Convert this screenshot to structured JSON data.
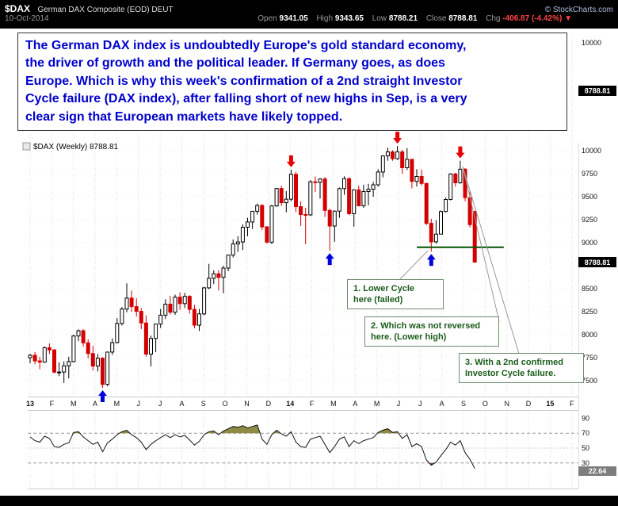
{
  "header": {
    "symbol": "$DAX",
    "title": "German DAX Composite (EOD) DEUT",
    "date": "10-Oct-2014",
    "copyright": "© StockCharts.com",
    "quote": {
      "open_l": "Open",
      "open_v": "9341.05",
      "high_l": "High",
      "high_v": "9343.65",
      "low_l": "Low",
      "low_v": "8788.21",
      "close_l": "Close",
      "close_v": "8788.81",
      "chg_l": "Chg",
      "chg_v": "-406.87 (-4.42%)",
      "arrow": "▼"
    }
  },
  "commentary": {
    "lines": [
      "The German DAX index is undoubtedly Europe's gold standard economy,",
      "the driver of growth and the political leader.  If Germany goes, as does",
      "Europe.  Which is why this week's confirmation of a 2nd straight Investor",
      "Cycle failure (DAX index), after falling short of new highs in Sep, is a very",
      "clear sign that European markets have likely topped."
    ]
  },
  "notes": {
    "note1": [
      "1. Lower Cycle",
      "here (failed)"
    ],
    "note2": [
      "2. Which was not reversed",
      "here. (Lower high)"
    ],
    "note3": [
      "3. With a 2nd confirmed",
      "Investor Cycle failure."
    ]
  },
  "chart_data": {
    "type": "candlestick",
    "title": "$DAX (Weekly) 8788.81",
    "timeframe": "Weekly",
    "last_price": 8788.81,
    "price_tag": "8788.81",
    "upper_axis": {
      "label": "10000",
      "tag": "8788.81"
    },
    "x_labels": [
      "13",
      "F",
      "M",
      "A",
      "M",
      "J",
      "J",
      "A",
      "S",
      "O",
      "N",
      "D",
      "14",
      "F",
      "M",
      "A",
      "M",
      "J",
      "J",
      "A",
      "S",
      "O",
      "N",
      "D",
      "15",
      "F"
    ],
    "price_axis": [
      10000,
      9750,
      9500,
      9250,
      9000,
      8500,
      8250,
      8000,
      7750,
      7500
    ],
    "ylim": [
      7350,
      10150
    ],
    "candles": [
      [
        7750,
        7792,
        7690,
        7776
      ],
      [
        7776,
        7810,
        7680,
        7715
      ],
      [
        7715,
        7760,
        7625,
        7702
      ],
      [
        7702,
        7871,
        7695,
        7858
      ],
      [
        7858,
        7905,
        7790,
        7834
      ],
      [
        7834,
        7845,
        7580,
        7593
      ],
      [
        7593,
        7700,
        7550,
        7594
      ],
      [
        7594,
        7710,
        7475,
        7662
      ],
      [
        7662,
        7760,
        7525,
        7708
      ],
      [
        7708,
        8000,
        7700,
        7986
      ],
      [
        7986,
        8058,
        7930,
        8043
      ],
      [
        8043,
        8060,
        7870,
        7911
      ],
      [
        7911,
        7950,
        7740,
        7795
      ],
      [
        7795,
        7880,
        7610,
        7659
      ],
      [
        7659,
        7790,
        7600,
        7745
      ],
      [
        7745,
        7755,
        7422,
        7460
      ],
      [
        7460,
        7815,
        7440,
        7811
      ],
      [
        7811,
        7960,
        7780,
        7914
      ],
      [
        7914,
        8180,
        7905,
        8122
      ],
      [
        8122,
        8300,
        8100,
        8279
      ],
      [
        8279,
        8558,
        8245,
        8398
      ],
      [
        8398,
        8480,
        8250,
        8305
      ],
      [
        8305,
        8395,
        8196,
        8254
      ],
      [
        8254,
        8290,
        8060,
        8127
      ],
      [
        8127,
        8210,
        7760,
        7789
      ],
      [
        7789,
        7990,
        7655,
        7959
      ],
      [
        7959,
        8120,
        7810,
        8116
      ],
      [
        8116,
        8280,
        8073,
        8212
      ],
      [
        8212,
        8385,
        8170,
        8332
      ],
      [
        8332,
        8420,
        8220,
        8245
      ],
      [
        8245,
        8435,
        8215,
        8408
      ],
      [
        8408,
        8460,
        8270,
        8338
      ],
      [
        8338,
        8455,
        8290,
        8417
      ],
      [
        8417,
        8430,
        8230,
        8275
      ],
      [
        8275,
        8325,
        8070,
        8103
      ],
      [
        8103,
        8280,
        8040,
        8226
      ],
      [
        8226,
        8520,
        8210,
        8509
      ],
      [
        8509,
        8770,
        8495,
        8613
      ],
      [
        8613,
        8700,
        8550,
        8662
      ],
      [
        8662,
        8700,
        8480,
        8623
      ],
      [
        8623,
        8750,
        8450,
        8724
      ],
      [
        8724,
        8870,
        8690,
        8865
      ],
      [
        8865,
        9035,
        8840,
        8986
      ],
      [
        8986,
        9070,
        8900,
        9008
      ],
      [
        9008,
        9200,
        8920,
        9168
      ],
      [
        9168,
        9270,
        9070,
        9225
      ],
      [
        9225,
        9345,
        9150,
        9341
      ],
      [
        9341,
        9425,
        9305,
        9405
      ],
      [
        9405,
        9420,
        9139,
        9172
      ],
      [
        9172,
        9180,
        8990,
        9006
      ],
      [
        9006,
        9410,
        8984,
        9400
      ],
      [
        9400,
        9595,
        9390,
        9589
      ],
      [
        9589,
        9620,
        9400,
        9435
      ],
      [
        9435,
        9560,
        9330,
        9473
      ],
      [
        9473,
        9794,
        9450,
        9743
      ],
      [
        9743,
        9770,
        9335,
        9392
      ],
      [
        9392,
        9450,
        9180,
        9306
      ],
      [
        9306,
        9380,
        8984,
        9302
      ],
      [
        9302,
        9680,
        9290,
        9662
      ],
      [
        9662,
        9720,
        9550,
        9657
      ],
      [
        9657,
        9700,
        9480,
        9692
      ],
      [
        9692,
        9714,
        9280,
        9351
      ],
      [
        9351,
        9370,
        8913,
        9181
      ],
      [
        9181,
        9350,
        9010,
        9343
      ],
      [
        9343,
        9600,
        9270,
        9588
      ],
      [
        9588,
        9721,
        9520,
        9696
      ],
      [
        9696,
        9710,
        9300,
        9315
      ],
      [
        9315,
        9580,
        9174,
        9574
      ],
      [
        9574,
        9620,
        9395,
        9401
      ],
      [
        9401,
        9630,
        9380,
        9556
      ],
      [
        9556,
        9640,
        9407,
        9581
      ],
      [
        9581,
        9660,
        9500,
        9629
      ],
      [
        9629,
        9800,
        9610,
        9768
      ],
      [
        9768,
        9950,
        9710,
        9943
      ],
      [
        9943,
        10033,
        9890,
        9987
      ],
      [
        9987,
        10005,
        9890,
        9913
      ],
      [
        9913,
        10051,
        9900,
        9987
      ],
      [
        9987,
        10010,
        9750,
        9815
      ],
      [
        9815,
        10029,
        9790,
        9906
      ],
      [
        9906,
        9910,
        9590,
        9666
      ],
      [
        9666,
        9800,
        9610,
        9720
      ],
      [
        9720,
        9795,
        9620,
        9644
      ],
      [
        9644,
        9650,
        9190,
        9210
      ],
      [
        9210,
        9260,
        8903,
        9009
      ],
      [
        9009,
        9245,
        8990,
        9093
      ],
      [
        9093,
        9350,
        9090,
        9339
      ],
      [
        9339,
        9490,
        9330,
        9470
      ],
      [
        9470,
        9755,
        9460,
        9747
      ],
      [
        9747,
        9760,
        9610,
        9651
      ],
      [
        9651,
        9891,
        9640,
        9799
      ],
      [
        9799,
        9810,
        9450,
        9490
      ],
      [
        9490,
        9560,
        9165,
        9196
      ],
      [
        9341.05,
        9343.65,
        8788.21,
        8788.81
      ]
    ],
    "arrows": {
      "up_weeks": [
        15,
        62,
        83
      ],
      "down_weeks": [
        54,
        76,
        89
      ]
    },
    "support_line": {
      "price": 8950,
      "from_week": 80,
      "to_week": 98
    },
    "pointer_lines": [
      [
        505,
        352,
        540,
        316
      ],
      [
        584,
        210,
        630,
        405
      ],
      [
        584,
        210,
        655,
        446
      ]
    ],
    "rsi": {
      "values": [
        65,
        60,
        58,
        66,
        63,
        52,
        51,
        55,
        57,
        71,
        72,
        65,
        60,
        55,
        58,
        45,
        57,
        62,
        68,
        72,
        74,
        68,
        64,
        58,
        48,
        55,
        60,
        64,
        68,
        64,
        68,
        65,
        67,
        61,
        54,
        59,
        68,
        72,
        73,
        68,
        73,
        76,
        79,
        78,
        80,
        77,
        79,
        81,
        62,
        55,
        68,
        74,
        69,
        66,
        72,
        58,
        52,
        51,
        62,
        64,
        66,
        55,
        44,
        52,
        62,
        65,
        52,
        60,
        56,
        60,
        62,
        64,
        71,
        74,
        76,
        71,
        72,
        63,
        68,
        52,
        56,
        52,
        34,
        27,
        31,
        40,
        48,
        58,
        54,
        60,
        44,
        35,
        22.64
      ],
      "overbought": 70,
      "oversold": 30,
      "midline": 50,
      "axis_labels": [
        90,
        70,
        50,
        30
      ],
      "last": 22.64,
      "last_label": "22.64"
    },
    "colors": {
      "up": "#000000",
      "down": "#d40000",
      "arrow_up": "#0000dd",
      "arrow_down": "#e60000",
      "support": "#005500",
      "overbought_fill": "#8f8a44",
      "oversold_fill": "#8b3a5a",
      "pointer": "#999999",
      "commentary_blue": "#0000cd"
    }
  }
}
